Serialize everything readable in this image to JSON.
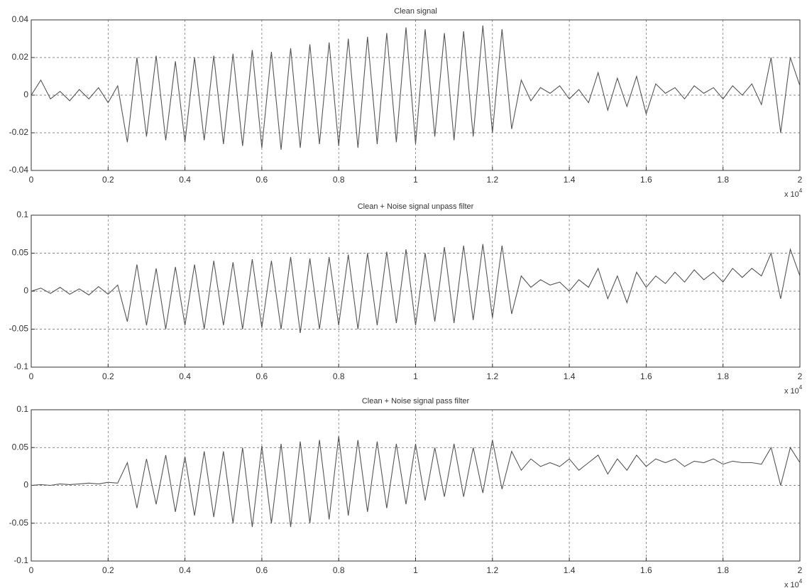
{
  "chart_data": [
    {
      "type": "line",
      "title": "Clean signal",
      "color": "#555555",
      "grid": true,
      "x_scale_label": {
        "base": "x 10",
        "exponent": "4"
      },
      "xlim": [
        0,
        20000
      ],
      "ylim": [
        -0.04,
        0.04
      ],
      "xticks": [
        0,
        {
          "value": 2000,
          "label": "0.2"
        },
        {
          "value": 4000,
          "label": "0.4"
        },
        {
          "value": 6000,
          "label": "0.6"
        },
        {
          "value": 8000,
          "label": "0.8"
        },
        {
          "value": 10000,
          "label": "1"
        },
        {
          "value": 12000,
          "label": "1.2"
        },
        {
          "value": 14000,
          "label": "1.4"
        },
        {
          "value": 16000,
          "label": "1.6"
        },
        {
          "value": 18000,
          "label": "1.8"
        },
        {
          "value": 20000,
          "label": "2"
        }
      ],
      "yticks": [
        -0.04,
        -0.02,
        0,
        0.02,
        0.04
      ],
      "x": [
        0,
        250,
        500,
        750,
        1000,
        1250,
        1500,
        1750,
        2000,
        2250,
        2500,
        2750,
        3000,
        3250,
        3500,
        3750,
        4000,
        4250,
        4500,
        4750,
        5000,
        5250,
        5500,
        5750,
        6000,
        6250,
        6500,
        6750,
        7000,
        7250,
        7500,
        7750,
        8000,
        8250,
        8500,
        8750,
        9000,
        9250,
        9500,
        9750,
        10000,
        10250,
        10500,
        10750,
        11000,
        11250,
        11500,
        11750,
        12000,
        12250,
        12500,
        12750,
        13000,
        13250,
        13500,
        13750,
        14000,
        14250,
        14500,
        14750,
        15000,
        15250,
        15500,
        15750,
        16000,
        16250,
        16500,
        16750,
        17000,
        17250,
        17500,
        17750,
        18000,
        18250,
        18500,
        18750,
        19000,
        19250,
        19500,
        19750,
        20000
      ],
      "values": [
        0,
        0.008,
        -0.002,
        0.002,
        -0.003,
        0.003,
        -0.002,
        0.004,
        -0.004,
        0.005,
        -0.025,
        0.02,
        -0.022,
        0.021,
        -0.024,
        0.018,
        -0.025,
        0.02,
        -0.024,
        0.021,
        -0.026,
        0.022,
        -0.027,
        0.024,
        -0.028,
        0.023,
        -0.029,
        0.025,
        -0.028,
        0.027,
        -0.026,
        0.028,
        -0.027,
        0.03,
        -0.028,
        0.031,
        -0.026,
        0.033,
        -0.025,
        0.036,
        -0.026,
        0.035,
        -0.022,
        0.033,
        -0.024,
        0.034,
        -0.022,
        0.037,
        -0.02,
        0.035,
        -0.018,
        0.008,
        -0.003,
        0.004,
        0.001,
        0.005,
        -0.002,
        0.003,
        -0.004,
        0.012,
        -0.008,
        0.009,
        -0.006,
        0.01,
        -0.01,
        0.006,
        0.001,
        0.004,
        -0.002,
        0.005,
        0.001,
        0.004,
        -0.002,
        0.005,
        0,
        0.006,
        -0.005,
        0.02,
        -0.02,
        0.02,
        0.005
      ]
    },
    {
      "type": "line",
      "title": "Clean + Noise signal unpass filter",
      "color": "#555555",
      "grid": true,
      "x_scale_label": {
        "base": "x 10",
        "exponent": "4"
      },
      "xlim": [
        0,
        20000
      ],
      "ylim": [
        -0.1,
        0.1
      ],
      "xticks": [
        0,
        {
          "value": 2000,
          "label": "0.2"
        },
        {
          "value": 4000,
          "label": "0.4"
        },
        {
          "value": 6000,
          "label": "0.6"
        },
        {
          "value": 8000,
          "label": "0.8"
        },
        {
          "value": 10000,
          "label": "1"
        },
        {
          "value": 12000,
          "label": "1.2"
        },
        {
          "value": 14000,
          "label": "1.4"
        },
        {
          "value": 16000,
          "label": "1.6"
        },
        {
          "value": 18000,
          "label": "1.8"
        },
        {
          "value": 20000,
          "label": "2"
        }
      ],
      "yticks": [
        -0.1,
        -0.05,
        0,
        0.05,
        0.1
      ],
      "x": [
        0,
        250,
        500,
        750,
        1000,
        1250,
        1500,
        1750,
        2000,
        2250,
        2500,
        2750,
        3000,
        3250,
        3500,
        3750,
        4000,
        4250,
        4500,
        4750,
        5000,
        5250,
        5500,
        5750,
        6000,
        6250,
        6500,
        6750,
        7000,
        7250,
        7500,
        7750,
        8000,
        8250,
        8500,
        8750,
        9000,
        9250,
        9500,
        9750,
        10000,
        10250,
        10500,
        10750,
        11000,
        11250,
        11500,
        11750,
        12000,
        12250,
        12500,
        12750,
        13000,
        13250,
        13500,
        13750,
        14000,
        14250,
        14500,
        14750,
        15000,
        15250,
        15500,
        15750,
        16000,
        16250,
        16500,
        16750,
        17000,
        17250,
        17500,
        17750,
        18000,
        18250,
        18500,
        18750,
        19000,
        19250,
        19500,
        19750,
        20000
      ],
      "values": [
        0,
        0.004,
        -0.003,
        0.005,
        -0.004,
        0.003,
        -0.005,
        0.006,
        -0.004,
        0.008,
        -0.04,
        0.035,
        -0.045,
        0.03,
        -0.05,
        0.032,
        -0.045,
        0.035,
        -0.05,
        0.04,
        -0.045,
        0.038,
        -0.05,
        0.042,
        -0.048,
        0.04,
        -0.05,
        0.045,
        -0.055,
        0.043,
        -0.05,
        0.045,
        -0.045,
        0.048,
        -0.05,
        0.05,
        -0.045,
        0.052,
        -0.042,
        0.055,
        -0.045,
        0.05,
        -0.04,
        0.058,
        -0.042,
        0.06,
        -0.038,
        0.062,
        -0.035,
        0.06,
        -0.03,
        0.02,
        0.005,
        0.015,
        0.008,
        0.012,
        0,
        0.015,
        0.005,
        0.03,
        -0.01,
        0.02,
        -0.015,
        0.025,
        0.005,
        0.02,
        0.01,
        0.025,
        0.012,
        0.028,
        0.015,
        0.025,
        0.012,
        0.03,
        0.018,
        0.03,
        0.02,
        0.05,
        -0.01,
        0.055,
        0.02
      ]
    },
    {
      "type": "line",
      "title": "Clean + Noise signal pass filter",
      "color": "#555555",
      "grid": true,
      "x_scale_label": {
        "base": "x 10",
        "exponent": "4"
      },
      "xlim": [
        0,
        20000
      ],
      "ylim": [
        -0.1,
        0.1
      ],
      "xticks": [
        0,
        {
          "value": 2000,
          "label": "0.2"
        },
        {
          "value": 4000,
          "label": "0.4"
        },
        {
          "value": 6000,
          "label": "0.6"
        },
        {
          "value": 8000,
          "label": "0.8"
        },
        {
          "value": 10000,
          "label": "1"
        },
        {
          "value": 12000,
          "label": "1.2"
        },
        {
          "value": 14000,
          "label": "1.4"
        },
        {
          "value": 16000,
          "label": "1.6"
        },
        {
          "value": 18000,
          "label": "1.8"
        },
        {
          "value": 20000,
          "label": "2"
        }
      ],
      "yticks": [
        -0.1,
        -0.05,
        0,
        0.05,
        0.1
      ],
      "x": [
        0,
        250,
        500,
        750,
        1000,
        1250,
        1500,
        1750,
        2000,
        2250,
        2500,
        2750,
        3000,
        3250,
        3500,
        3750,
        4000,
        4250,
        4500,
        4750,
        5000,
        5250,
        5500,
        5750,
        6000,
        6250,
        6500,
        6750,
        7000,
        7250,
        7500,
        7750,
        8000,
        8250,
        8500,
        8750,
        9000,
        9250,
        9500,
        9750,
        10000,
        10250,
        10500,
        10750,
        11000,
        11250,
        11500,
        11750,
        12000,
        12250,
        12500,
        12750,
        13000,
        13250,
        13500,
        13750,
        14000,
        14250,
        14500,
        14750,
        15000,
        15250,
        15500,
        15750,
        16000,
        16250,
        16500,
        16750,
        17000,
        17250,
        17500,
        17750,
        18000,
        18250,
        18500,
        18750,
        19000,
        19250,
        19500,
        19750,
        20000
      ],
      "values": [
        0,
        0.001,
        0,
        0.002,
        0.001,
        0.002,
        0.003,
        0.002,
        0.004,
        0.003,
        0.03,
        -0.03,
        0.035,
        -0.025,
        0.04,
        -0.035,
        0.038,
        -0.04,
        0.045,
        -0.042,
        0.045,
        -0.05,
        0.05,
        -0.055,
        0.052,
        -0.05,
        0.055,
        -0.055,
        0.058,
        -0.05,
        0.06,
        -0.045,
        0.065,
        -0.04,
        0.06,
        -0.035,
        0.058,
        -0.03,
        0.055,
        -0.025,
        0.055,
        -0.02,
        0.05,
        -0.015,
        0.055,
        -0.015,
        0.05,
        -0.01,
        0.06,
        -0.005,
        0.045,
        0.02,
        0.035,
        0.025,
        0.03,
        0.025,
        0.035,
        0.02,
        0.03,
        0.04,
        0.015,
        0.035,
        0.02,
        0.04,
        0.025,
        0.035,
        0.03,
        0.035,
        0.025,
        0.032,
        0.03,
        0.035,
        0.028,
        0.032,
        0.03,
        0.03,
        0.028,
        0.05,
        0,
        0.05,
        0.03
      ]
    }
  ]
}
